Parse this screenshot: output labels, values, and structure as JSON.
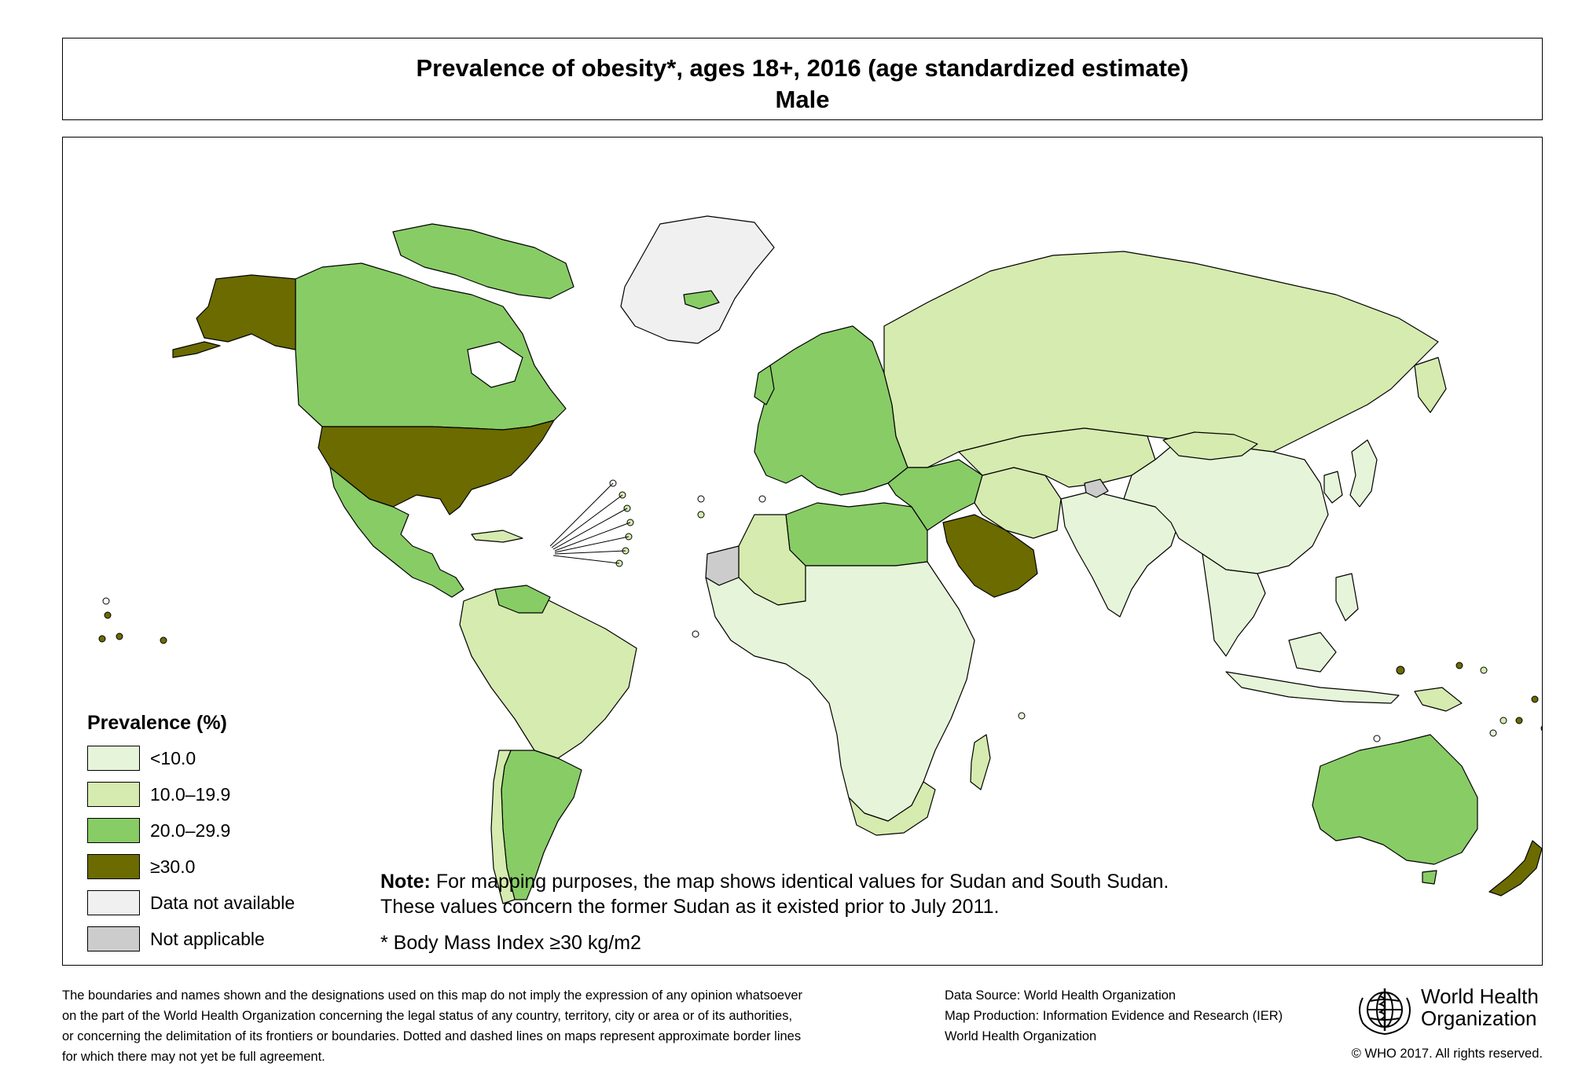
{
  "title": {
    "line1": "Prevalence of  obesity*, ages 18+, 2016 (age standardized estimate)",
    "line2": "Male"
  },
  "legend": {
    "title": "Prevalence (%)",
    "items": [
      {
        "label": "<10.0",
        "color": "#e6f5d9"
      },
      {
        "label": "10.0–19.9",
        "color": "#d6ebaf"
      },
      {
        "label": "20.0–29.9",
        "color": "#88cc66"
      },
      {
        "label": "≥30.0",
        "color": "#6b6b00"
      },
      {
        "label": "Data not available",
        "color": "#f0f0f0"
      },
      {
        "label": "Not applicable",
        "color": "#cccccc"
      }
    ]
  },
  "note": {
    "label": "Note:",
    "line1": " For mapping purposes, the map shows identical values for Sudan and South Sudan.",
    "line2": "These values concern the former Sudan as it existed prior to July 2011."
  },
  "footnote": "* Body Mass Index ≥30 kg/m2",
  "disclaimer": [
    "The boundaries and names shown and the designations used on this map do not imply the expression of any opinion whatsoever",
    "on the part of the World Health Organization concerning the legal status of any country, territory, city or area or of its authorities,",
    "or concerning the delimitation of its frontiers or boundaries. Dotted and dashed lines on maps represent approximate border lines",
    "for which there may not yet be full agreement."
  ],
  "source": [
    "Data Source: World Health Organization",
    "Map Production: Information Evidence and Research (IER)",
    "World Health Organization"
  ],
  "org": {
    "name_line1": "World Health",
    "name_line2": "Organization",
    "logo_icon": "who-emblem-icon"
  },
  "copyright": "© WHO 2017. All rights reserved.",
  "map": {
    "region_classes": [
      {
        "region": "USA",
        "class": "≥30.0"
      },
      {
        "region": "Alaska",
        "class": "≥30.0"
      },
      {
        "region": "Saudi Arabia",
        "class": "≥30.0"
      },
      {
        "region": "New Zealand",
        "class": "≥30.0"
      },
      {
        "region": "Canada",
        "class": "20.0–29.9"
      },
      {
        "region": "Mexico",
        "class": "20.0–29.9"
      },
      {
        "region": "Argentina",
        "class": "20.0–29.9"
      },
      {
        "region": "Australia",
        "class": "20.0–29.9"
      },
      {
        "region": "Europe",
        "class": "20.0–29.9"
      },
      {
        "region": "North Africa",
        "class": "20.0–29.9"
      },
      {
        "region": "Turkey & Middle East",
        "class": "20.0–29.9"
      },
      {
        "region": "Greenland",
        "class": "Data not available"
      },
      {
        "region": "Russia",
        "class": "10.0–19.9"
      },
      {
        "region": "Kazakhstan & Central Asia",
        "class": "10.0–19.9"
      },
      {
        "region": "Brazil & South America",
        "class": "10.0–19.9"
      },
      {
        "region": "Iran",
        "class": "10.0–19.9"
      },
      {
        "region": "Algeria",
        "class": "10.0–19.9"
      },
      {
        "region": "South Africa",
        "class": "10.0–19.9"
      },
      {
        "region": "China",
        "class": "<10.0"
      },
      {
        "region": "India",
        "class": "<10.0"
      },
      {
        "region": "Sub-Saharan Africa",
        "class": "<10.0"
      },
      {
        "region": "Southeast Asia",
        "class": "<10.0"
      },
      {
        "region": "Western Sahara",
        "class": "Not applicable"
      },
      {
        "region": "Jammu and Kashmir",
        "class": "Not applicable"
      }
    ]
  }
}
